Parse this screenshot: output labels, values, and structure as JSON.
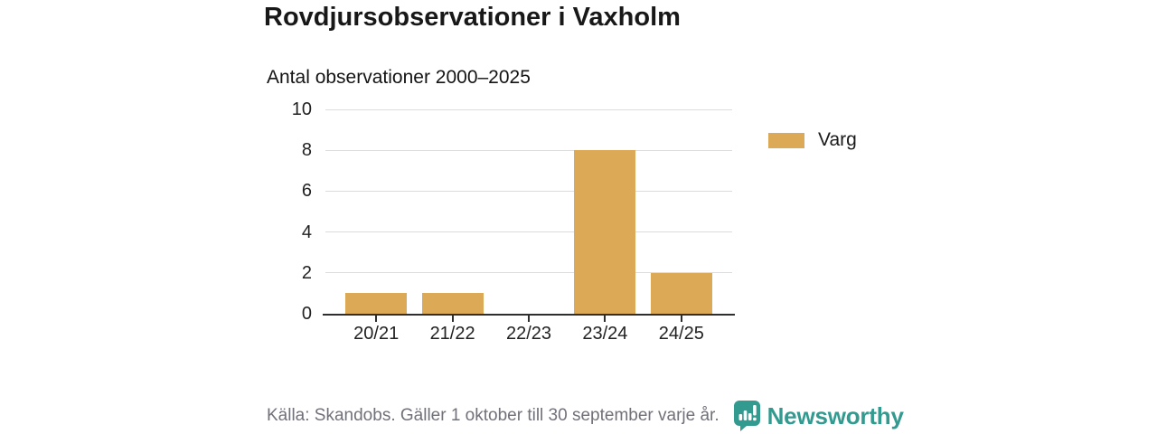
{
  "header": {
    "title": "Rovdjursobservationer i Vaxholm",
    "subtitle": "Antal observationer 2000–2025"
  },
  "chart_data": {
    "type": "bar",
    "title": "Rovdjursobservationer i Vaxholm",
    "subtitle": "Antal observationer 2000–2025",
    "categories": [
      "20/21",
      "21/22",
      "22/23",
      "23/24",
      "24/25"
    ],
    "series": [
      {
        "name": "Varg",
        "color": "#dcaa57",
        "values": [
          1,
          1,
          0,
          8,
          2
        ]
      }
    ],
    "xlabel": "",
    "ylabel": "",
    "ylim": [
      0,
      10
    ],
    "yticks": [
      0,
      2,
      4,
      6,
      8,
      10
    ],
    "grid": true,
    "legend_position": "right"
  },
  "legend": {
    "items": [
      {
        "label": "Varg",
        "color": "#dcaa57"
      }
    ]
  },
  "footer": {
    "source": "Källa: Skandobs. Gäller 1 oktober till 30 september varje år.",
    "brand": "Newsworthy"
  },
  "colors": {
    "bar": "#dcaa57",
    "brand_teal": "#339a90",
    "gridline": "#dcdcdc",
    "axis": "#2e2e2e",
    "source_text": "#71717a"
  }
}
